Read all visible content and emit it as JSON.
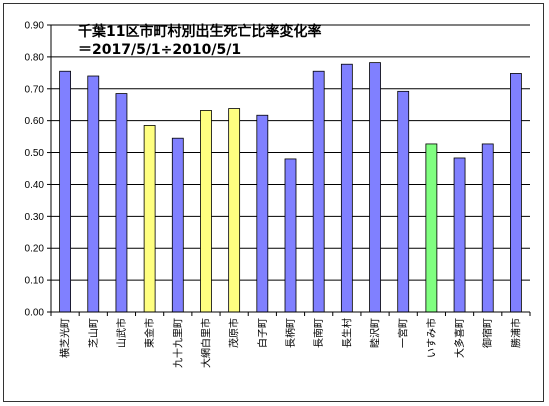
{
  "chart_data": {
    "type": "bar",
    "title_lines": [
      "千葉11区市町村別出生死亡比率変化率",
      "＝2017/5/1÷2010/5/1"
    ],
    "xlabel": "",
    "ylabel": "",
    "ylim": [
      0,
      0.9
    ],
    "yticks": [
      "0.00",
      "0.10",
      "0.20",
      "0.30",
      "0.40",
      "0.50",
      "0.60",
      "0.70",
      "0.80",
      "0.90"
    ],
    "grid": true,
    "legend": "none",
    "categories": [
      "横芝光町",
      "芝山町",
      "山武市",
      "東金市",
      "九十九里町",
      "大網白里市",
      "茂原市",
      "白子町",
      "長柄町",
      "長南町",
      "長生村",
      "睦沢町",
      "一宮町",
      "いすみ市",
      "大多喜町",
      "御宿町",
      "勝浦市"
    ],
    "values": [
      0.755,
      0.74,
      0.685,
      0.585,
      0.545,
      0.632,
      0.638,
      0.617,
      0.48,
      0.755,
      0.777,
      0.782,
      0.692,
      0.527,
      0.483,
      0.527,
      0.748
    ],
    "bar_colors": [
      "#8080ff",
      "#8080ff",
      "#8080ff",
      "#ffff80",
      "#8080ff",
      "#ffff80",
      "#ffff80",
      "#8080ff",
      "#8080ff",
      "#8080ff",
      "#8080ff",
      "#8080ff",
      "#8080ff",
      "#80ff80",
      "#8080ff",
      "#8080ff",
      "#8080ff"
    ],
    "colors": {
      "blue": "#8080ff",
      "yellow": "#ffff80",
      "green": "#80ff80",
      "grid": "#000000",
      "bar_outline": "#000000"
    }
  }
}
